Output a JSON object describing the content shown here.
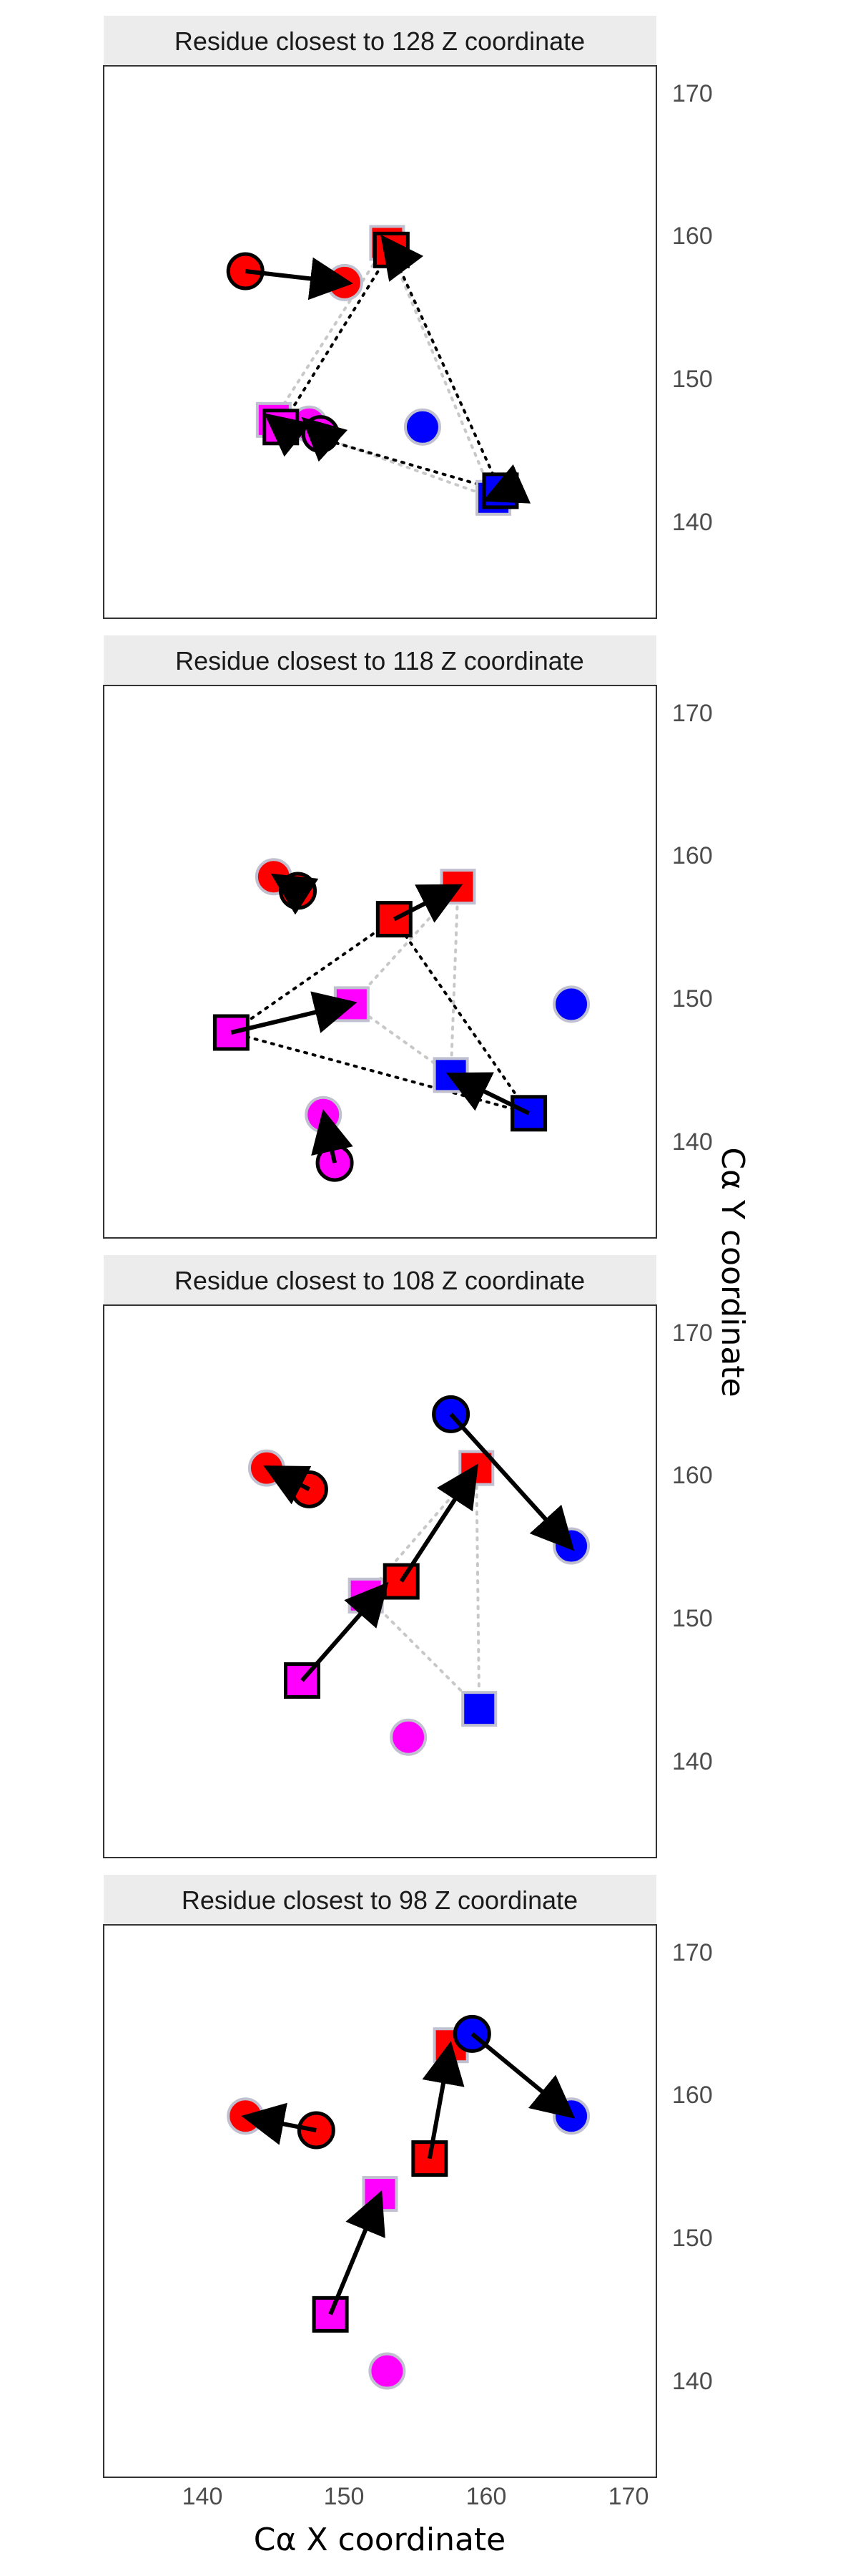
{
  "chart_data": {
    "type": "scatter",
    "xlabel": "Cα X coordinate",
    "ylabel": "Cα Y coordinate",
    "xlim": [
      133.5,
      172.5
    ],
    "ylim": [
      133.5,
      172.5
    ],
    "x_ticks": [
      "140",
      "150",
      "160",
      "170"
    ],
    "y_ticks": [
      "140",
      "150",
      "160",
      "170"
    ],
    "y_axis_position": "right",
    "grid": false,
    "colors": {
      "red": "#ff0000",
      "magenta": "#ff00ff",
      "blue": "#0000ff",
      "outline": "#000000",
      "ghost_outline": "#c0c0d0",
      "strip_bg": "#ececec"
    },
    "panels": [
      {
        "title": "Residue closest to 128 Z coordinate",
        "points": [
          {
            "x": 143.5,
            "y": 158.0,
            "shape": "circle",
            "color": "red",
            "state": "start"
          },
          {
            "x": 150.5,
            "y": 157.2,
            "shape": "circle",
            "color": "red",
            "state": "end"
          },
          {
            "x": 148.0,
            "y": 147.2,
            "shape": "circle",
            "color": "magenta",
            "state": "end"
          },
          {
            "x": 148.8,
            "y": 146.5,
            "shape": "circle",
            "color": "magenta",
            "state": "start"
          },
          {
            "x": 156.0,
            "y": 147.0,
            "shape": "circle",
            "color": "blue",
            "state": "end"
          },
          {
            "x": 153.5,
            "y": 160.0,
            "shape": "square",
            "color": "red",
            "state": "end"
          },
          {
            "x": 153.8,
            "y": 159.5,
            "shape": "square",
            "color": "red",
            "state": "start"
          },
          {
            "x": 145.5,
            "y": 147.5,
            "shape": "square",
            "color": "magenta",
            "state": "end"
          },
          {
            "x": 146.0,
            "y": 147.0,
            "shape": "square",
            "color": "magenta",
            "state": "start"
          },
          {
            "x": 161.0,
            "y": 142.0,
            "shape": "square",
            "color": "blue",
            "state": "end"
          },
          {
            "x": 161.5,
            "y": 142.5,
            "shape": "square",
            "color": "blue",
            "state": "start"
          }
        ],
        "arrows": [
          {
            "x1": 143.5,
            "y1": 158.0,
            "x2": 150.5,
            "y2": 157.2
          },
          {
            "x1": 154.0,
            "y1": 159.3,
            "x2": 153.4,
            "y2": 160.1
          },
          {
            "x1": 146.3,
            "y1": 146.8,
            "x2": 145.3,
            "y2": 147.6
          },
          {
            "x1": 149.0,
            "y1": 146.3,
            "x2": 147.9,
            "y2": 147.3
          },
          {
            "x1": 161.7,
            "y1": 142.4,
            "x2": 160.8,
            "y2": 142.0
          }
        ],
        "triangle_start": [
          [
            153.8,
            159.5
          ],
          [
            146.0,
            147.0
          ],
          [
            161.5,
            142.5
          ]
        ],
        "triangle_end": [
          [
            153.5,
            160.0
          ],
          [
            145.5,
            147.5
          ],
          [
            161.0,
            142.0
          ]
        ]
      },
      {
        "title": "Residue closest to 118 Z coordinate",
        "points": [
          {
            "x": 145.5,
            "y": 159.0,
            "shape": "circle",
            "color": "red",
            "state": "end"
          },
          {
            "x": 147.2,
            "y": 158.0,
            "shape": "circle",
            "color": "red",
            "state": "start"
          },
          {
            "x": 149.0,
            "y": 142.2,
            "shape": "circle",
            "color": "magenta",
            "state": "end"
          },
          {
            "x": 149.8,
            "y": 138.8,
            "shape": "circle",
            "color": "magenta",
            "state": "start"
          },
          {
            "x": 166.5,
            "y": 150.0,
            "shape": "circle",
            "color": "blue",
            "state": "end"
          },
          {
            "x": 158.5,
            "y": 158.3,
            "shape": "square",
            "color": "red",
            "state": "end"
          },
          {
            "x": 154.0,
            "y": 156.0,
            "shape": "square",
            "color": "red",
            "state": "start"
          },
          {
            "x": 151.0,
            "y": 150.0,
            "shape": "square",
            "color": "magenta",
            "state": "end"
          },
          {
            "x": 142.5,
            "y": 148.0,
            "shape": "square",
            "color": "magenta",
            "state": "start"
          },
          {
            "x": 158.0,
            "y": 145.0,
            "shape": "square",
            "color": "blue",
            "state": "end"
          },
          {
            "x": 163.5,
            "y": 142.3,
            "shape": "square",
            "color": "blue",
            "state": "start"
          }
        ],
        "arrows": [
          {
            "x1": 147.2,
            "y1": 158.0,
            "x2": 145.8,
            "y2": 158.9
          },
          {
            "x1": 149.8,
            "y1": 138.8,
            "x2": 149.1,
            "y2": 142.0
          },
          {
            "x1": 154.0,
            "y1": 156.0,
            "x2": 158.3,
            "y2": 158.2
          },
          {
            "x1": 142.5,
            "y1": 148.0,
            "x2": 150.8,
            "y2": 150.0
          },
          {
            "x1": 163.5,
            "y1": 142.3,
            "x2": 158.2,
            "y2": 144.9
          }
        ],
        "triangle_start": [
          [
            154.0,
            156.0
          ],
          [
            142.5,
            148.0
          ],
          [
            163.5,
            142.3
          ]
        ],
        "triangle_end": [
          [
            158.5,
            158.3
          ],
          [
            151.0,
            150.0
          ],
          [
            158.0,
            145.0
          ]
        ]
      },
      {
        "title": "Residue closest to 108 Z coordinate",
        "points": [
          {
            "x": 145.0,
            "y": 161.0,
            "shape": "circle",
            "color": "red",
            "state": "end"
          },
          {
            "x": 148.0,
            "y": 159.5,
            "shape": "circle",
            "color": "red",
            "state": "start"
          },
          {
            "x": 155.0,
            "y": 142.0,
            "shape": "circle",
            "color": "magenta",
            "state": "end"
          },
          {
            "x": 166.5,
            "y": 155.5,
            "shape": "circle",
            "color": "blue",
            "state": "end"
          },
          {
            "x": 158.0,
            "y": 164.8,
            "shape": "circle",
            "color": "blue",
            "state": "start"
          },
          {
            "x": 159.8,
            "y": 161.0,
            "shape": "square",
            "color": "red",
            "state": "end"
          },
          {
            "x": 154.5,
            "y": 153.0,
            "shape": "square",
            "color": "red",
            "state": "start"
          },
          {
            "x": 152.0,
            "y": 152.0,
            "shape": "square",
            "color": "magenta",
            "state": "end"
          },
          {
            "x": 147.5,
            "y": 146.0,
            "shape": "square",
            "color": "magenta",
            "state": "start"
          },
          {
            "x": 160.0,
            "y": 144.0,
            "shape": "square",
            "color": "blue",
            "state": "end"
          }
        ],
        "arrows": [
          {
            "x1": 148.0,
            "y1": 159.5,
            "x2": 145.3,
            "y2": 160.9
          },
          {
            "x1": 158.0,
            "y1": 164.8,
            "x2": 166.3,
            "y2": 155.6
          },
          {
            "x1": 154.5,
            "y1": 153.0,
            "x2": 159.6,
            "y2": 160.8
          },
          {
            "x1": 147.5,
            "y1": 146.0,
            "x2": 153.2,
            "y2": 152.5
          }
        ],
        "triangle_end": [
          [
            159.8,
            161.0
          ],
          [
            152.0,
            152.0
          ],
          [
            160.0,
            144.0
          ]
        ]
      },
      {
        "title": "Residue closest to 98 Z coordinate",
        "points": [
          {
            "x": 143.5,
            "y": 159.0,
            "shape": "circle",
            "color": "red",
            "state": "end"
          },
          {
            "x": 148.5,
            "y": 158.0,
            "shape": "circle",
            "color": "red",
            "state": "start"
          },
          {
            "x": 153.5,
            "y": 141.0,
            "shape": "circle",
            "color": "magenta",
            "state": "end"
          },
          {
            "x": 166.5,
            "y": 159.0,
            "shape": "circle",
            "color": "blue",
            "state": "end"
          },
          {
            "x": 159.5,
            "y": 164.8,
            "shape": "circle",
            "color": "blue",
            "state": "start"
          },
          {
            "x": 158.0,
            "y": 164.0,
            "shape": "square",
            "color": "red",
            "state": "end"
          },
          {
            "x": 156.5,
            "y": 156.0,
            "shape": "square",
            "color": "red",
            "state": "start"
          },
          {
            "x": 153.0,
            "y": 153.5,
            "shape": "square",
            "color": "magenta",
            "state": "end"
          },
          {
            "x": 149.5,
            "y": 145.0,
            "shape": "square",
            "color": "magenta",
            "state": "start"
          }
        ],
        "arrows": [
          {
            "x1": 148.5,
            "y1": 158.0,
            "x2": 143.8,
            "y2": 158.9
          },
          {
            "x1": 159.5,
            "y1": 164.8,
            "x2": 166.3,
            "y2": 159.2
          },
          {
            "x1": 156.5,
            "y1": 156.0,
            "x2": 157.9,
            "y2": 163.7
          },
          {
            "x1": 149.5,
            "y1": 145.0,
            "x2": 152.9,
            "y2": 153.2
          }
        ]
      }
    ]
  }
}
